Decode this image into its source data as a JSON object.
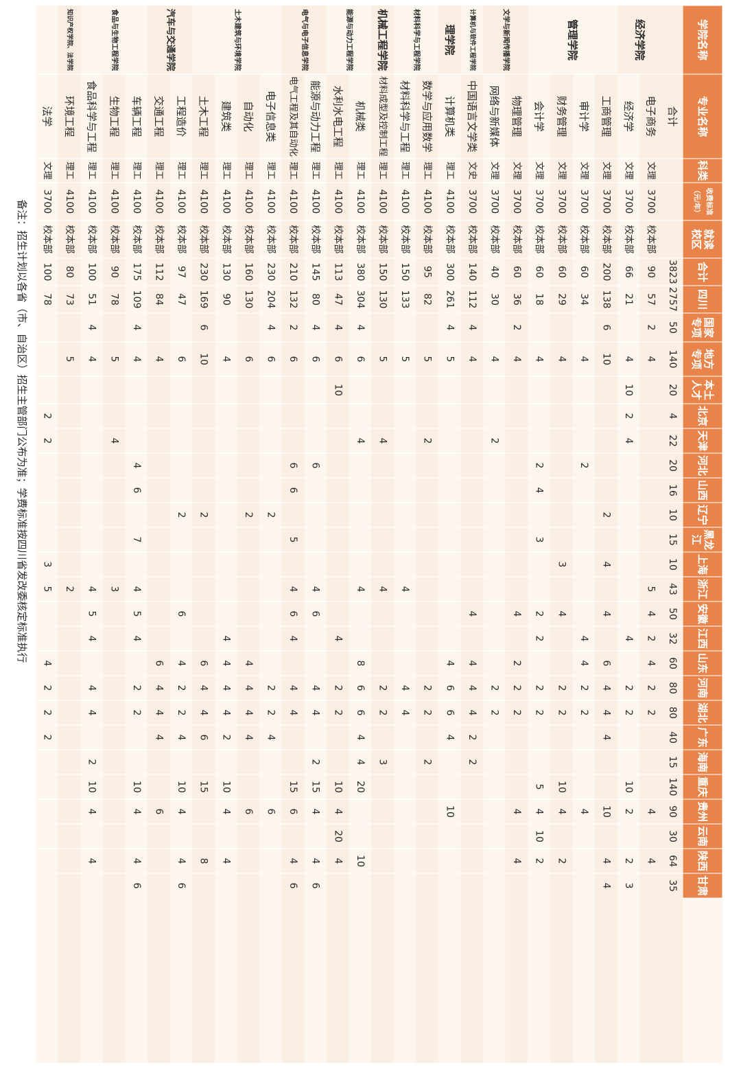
{
  "colors": {
    "header_bg": "#e8834a",
    "light_a": "#fbeee3",
    "light_b": "#fdf6ef",
    "text": "#2b2b2b",
    "header_text": "#ffffff"
  },
  "headers": [
    "学院名称",
    "专业名称",
    "科类",
    "收费标准（元/年）",
    "就读校区",
    "合计",
    "四川",
    "国家专项",
    "地方专项",
    "本土人才",
    "北京",
    "天津",
    "河北",
    "山西",
    "辽宁",
    "黑龙江",
    "上海",
    "浙江",
    "安徽",
    "江西",
    "山东",
    "河南",
    "湖北",
    "广东",
    "海南",
    "重庆",
    "贵州",
    "云南",
    "陕西",
    "甘肃"
  ],
  "total_row": {
    "label": "合计",
    "values": [
      "3823",
      "2757",
      "50",
      "140",
      "20",
      "4",
      "22",
      "20",
      "16",
      "10",
      "15",
      "10",
      "43",
      "50",
      "32",
      "60",
      "80",
      "80",
      "40",
      "15",
      "140",
      "90",
      "30",
      "64",
      "35"
    ]
  },
  "colleges": [
    {
      "name": "经济学院",
      "span": 2
    },
    {
      "name": "管理学院",
      "span": 4
    },
    {
      "name": "文学与新闻传播学院",
      "span": 2
    },
    {
      "name": "计算机与软件工程学院",
      "span": 1
    },
    {
      "name": "理学院",
      "span": 1
    },
    {
      "name": "材料科学与工程学院",
      "span": 2
    },
    {
      "name": "机械工程学院",
      "span": 1
    },
    {
      "name": "能源与动力工程学院",
      "span": 2
    },
    {
      "name": "电气与电子信息学院",
      "span": 2
    },
    {
      "name": "土木建筑与环境学院",
      "span": 4
    },
    {
      "name": "汽车与交通学院",
      "span": 2
    },
    {
      "name": "食品与生物工程学院",
      "span": 3
    },
    {
      "name": "知识产权学院、法学院",
      "span": 1
    }
  ],
  "rows": [
    {
      "major": "电子商务",
      "category": "文理",
      "fee": "3700",
      "campus": "校本部",
      "values": [
        "90",
        "57",
        "2",
        "4",
        "",
        "",
        "",
        "",
        "",
        "",
        "",
        "",
        "5",
        "4",
        "2",
        "4",
        "2",
        "2",
        "",
        "",
        "",
        "4",
        "",
        "4",
        ""
      ]
    },
    {
      "major": "经济学",
      "category": "文理",
      "fee": "3700",
      "campus": "校本部",
      "values": [
        "66",
        "21",
        "",
        "4",
        "10",
        "2",
        "4",
        "",
        "",
        "",
        "",
        "",
        "",
        "",
        "4",
        "",
        "2",
        "2",
        "",
        "",
        "10",
        "2",
        "",
        "2",
        "3"
      ]
    },
    {
      "major": "工商管理",
      "category": "文理",
      "fee": "3700",
      "campus": "校本部",
      "values": [
        "200",
        "138",
        "6",
        "10",
        "",
        "",
        "",
        "",
        "",
        "2",
        "",
        "4",
        "",
        "4",
        "",
        "6",
        "4",
        "4",
        "4",
        "",
        "",
        "10",
        "",
        "4",
        "4"
      ]
    },
    {
      "major": "审计学",
      "category": "文理",
      "fee": "3700",
      "campus": "校本部",
      "values": [
        "60",
        "34",
        "",
        "4",
        "",
        "",
        "",
        "2",
        "",
        "",
        "",
        "",
        "",
        "",
        "4",
        "4",
        "2",
        "2",
        "",
        "",
        "",
        "4",
        "",
        "",
        ""
      ]
    },
    {
      "major": "财务管理",
      "category": "文理",
      "fee": "3700",
      "campus": "校本部",
      "values": [
        "60",
        "29",
        "",
        "4",
        "",
        "",
        "",
        "",
        "",
        "",
        "",
        "3",
        "",
        "4",
        "",
        "",
        "2",
        "2",
        "",
        "",
        "10",
        "4",
        "",
        "2",
        ""
      ]
    },
    {
      "major": "会计学",
      "category": "文理",
      "fee": "3700",
      "campus": "校本部",
      "values": [
        "60",
        "18",
        "",
        "4",
        "",
        "",
        "",
        "2",
        "4",
        "",
        "3",
        "",
        "",
        "2",
        "2",
        "",
        "2",
        "2",
        "",
        "",
        "5",
        "4",
        "10",
        "2",
        ""
      ]
    },
    {
      "major": "物理管理",
      "category": "文理",
      "fee": "3700",
      "campus": "校本部",
      "values": [
        "60",
        "36",
        "2",
        "4",
        "",
        "",
        "",
        "",
        "",
        "",
        "",
        "",
        "",
        "4",
        "",
        "2",
        "2",
        "2",
        "",
        "",
        "",
        "4",
        "",
        "4",
        ""
      ]
    },
    {
      "major": "网络与新媒体",
      "category": "文理",
      "fee": "3700",
      "campus": "校本部",
      "values": [
        "40",
        "30",
        "",
        "4",
        "",
        "",
        "2",
        "",
        "",
        "",
        "",
        "",
        "",
        "",
        "",
        "",
        "2",
        "2",
        "",
        "",
        "",
        "",
        "",
        "",
        ""
      ]
    },
    {
      "major": "中国语言文学类",
      "category": "文史",
      "fee": "3700",
      "campus": "校本部",
      "values": [
        "140",
        "112",
        "4",
        "4",
        "",
        "",
        "",
        "",
        "",
        "",
        "",
        "",
        "",
        "4",
        "",
        "4",
        "4",
        "4",
        "2",
        "2",
        "",
        "",
        "",
        "",
        ""
      ]
    },
    {
      "major": "计算机类",
      "category": "理工",
      "fee": "4100",
      "campus": "校本部",
      "values": [
        "300",
        "261",
        "4",
        "5",
        "",
        "",
        "",
        "",
        "",
        "",
        "",
        "",
        "",
        "",
        "",
        "4",
        "6",
        "6",
        "4",
        "",
        "",
        "10",
        "",
        "",
        ""
      ]
    },
    {
      "major": "数学与应用数学",
      "category": "理工",
      "fee": "4100",
      "campus": "校本部",
      "values": [
        "95",
        "82",
        "",
        "5",
        "",
        "",
        "2",
        "",
        "",
        "",
        "",
        "",
        "",
        "",
        "",
        "",
        "2",
        "2",
        "",
        "2",
        "",
        "",
        "",
        "",
        ""
      ]
    },
    {
      "major": "材料科学与工程",
      "category": "理工",
      "fee": "4100",
      "campus": "校本部",
      "values": [
        "150",
        "133",
        "",
        "5",
        "",
        "",
        "",
        "",
        "",
        "",
        "",
        "",
        "4",
        "",
        "",
        "",
        "4",
        "4",
        "",
        "",
        "",
        "",
        "",
        "",
        ""
      ]
    },
    {
      "major": "材料成型及控制工程",
      "category": "理工",
      "fee": "4100",
      "campus": "校本部",
      "values": [
        "150",
        "130",
        "",
        "5",
        "",
        "",
        "4",
        "",
        "",
        "",
        "",
        "",
        "4",
        "",
        "",
        "",
        "2",
        "2",
        "",
        "3",
        "",
        "",
        "",
        "",
        ""
      ]
    },
    {
      "major": "机械类",
      "category": "理工",
      "fee": "4100",
      "campus": "校本部",
      "values": [
        "380",
        "304",
        "4",
        "6",
        "",
        "",
        "4",
        "",
        "",
        "",
        "",
        "",
        "4",
        "",
        "",
        "8",
        "6",
        "6",
        "4",
        "4",
        "20",
        "",
        "",
        "10",
        ""
      ]
    },
    {
      "major": "水利水电工程",
      "category": "理工",
      "fee": "4100",
      "campus": "校本部",
      "values": [
        "113",
        "47",
        "4",
        "6",
        "10",
        "",
        "",
        "",
        "",
        "",
        "",
        "",
        "",
        "",
        "4",
        "",
        "2",
        "2",
        "",
        "",
        "10",
        "4",
        "20",
        "4",
        ""
      ]
    },
    {
      "major": "能源与动力工程",
      "category": "理工",
      "fee": "4100",
      "campus": "校本部",
      "values": [
        "145",
        "80",
        "4",
        "6",
        "",
        "",
        "",
        "6",
        "",
        "",
        "",
        "",
        "4",
        "6",
        "",
        "",
        "4",
        "4",
        "",
        "2",
        "15",
        "4",
        "",
        "4",
        "6"
      ]
    },
    {
      "major": "电气工程及其自动化",
      "category": "理工",
      "fee": "4100",
      "campus": "校本部",
      "values": [
        "210",
        "132",
        "2",
        "6",
        "",
        "",
        "",
        "6",
        "6",
        "",
        "5",
        "",
        "4",
        "6",
        "4",
        "",
        "4",
        "4",
        "",
        "",
        "15",
        "6",
        "",
        "4",
        "6"
      ]
    },
    {
      "major": "电子信息类",
      "category": "理工",
      "fee": "4100",
      "campus": "校本部",
      "values": [
        "230",
        "204",
        "4",
        "6",
        "",
        "",
        "",
        "",
        "",
        "2",
        "",
        "",
        "",
        "",
        "",
        "",
        "2",
        "2",
        "4",
        "",
        "",
        "6",
        "",
        "",
        ""
      ]
    },
    {
      "major": "自动化",
      "category": "理工",
      "fee": "4100",
      "campus": "校本部",
      "values": [
        "160",
        "130",
        "",
        "6",
        "",
        "",
        "",
        "",
        "",
        "2",
        "",
        "",
        "",
        "",
        "",
        "4",
        "4",
        "4",
        "4",
        "",
        "",
        "6",
        "",
        "",
        ""
      ]
    },
    {
      "major": "建筑类",
      "category": "理工",
      "fee": "4100",
      "campus": "校本部",
      "values": [
        "130",
        "90",
        "",
        "4",
        "",
        "",
        "",
        "",
        "",
        "",
        "",
        "",
        "",
        "",
        "4",
        "4",
        "4",
        "4",
        "2",
        "",
        "10",
        "4",
        "",
        "4",
        ""
      ]
    },
    {
      "major": "土木工程",
      "category": "理工",
      "fee": "4100",
      "campus": "校本部",
      "values": [
        "230",
        "169",
        "6",
        "10",
        "",
        "",
        "",
        "",
        "",
        "2",
        "",
        "",
        "",
        "",
        "",
        "6",
        "4",
        "4",
        "6",
        "",
        "15",
        "",
        "",
        "8",
        ""
      ]
    },
    {
      "major": "工程造价",
      "category": "理工",
      "fee": "4100",
      "campus": "校本部",
      "values": [
        "97",
        "47",
        "",
        "6",
        "",
        "",
        "",
        "",
        "",
        "2",
        "",
        "",
        "",
        "6",
        "",
        "4",
        "2",
        "2",
        "4",
        "",
        "10",
        "4",
        "",
        "4",
        "6"
      ]
    },
    {
      "major": "交通工程",
      "category": "理工",
      "fee": "4100",
      "campus": "校本部",
      "values": [
        "112",
        "84",
        "",
        "4",
        "",
        "",
        "",
        "",
        "",
        "",
        "",
        "",
        "",
        "",
        "",
        "6",
        "4",
        "4",
        "4",
        "",
        "",
        "6",
        "",
        "",
        ""
      ]
    },
    {
      "major": "车辆工程",
      "category": "理工",
      "fee": "4100",
      "campus": "校本部",
      "values": [
        "175",
        "109",
        "4",
        "4",
        "",
        "",
        "",
        "4",
        "6",
        "",
        "7",
        "",
        "4",
        "5",
        "4",
        "",
        "2",
        "2",
        "",
        "",
        "10",
        "4",
        "",
        "4",
        "6"
      ]
    },
    {
      "major": "生物工程",
      "category": "理工",
      "fee": "4100",
      "campus": "校本部",
      "values": [
        "90",
        "78",
        "",
        "5",
        "",
        "",
        "4",
        "",
        "",
        "",
        "",
        "",
        "3",
        "",
        "",
        "",
        "",
        "",
        "",
        "",
        "",
        "",
        "",
        "",
        ""
      ]
    },
    {
      "major": "食品科学与工程",
      "category": "理工",
      "fee": "4100",
      "campus": "校本部",
      "values": [
        "100",
        "51",
        "4",
        "4",
        "",
        "",
        "",
        "",
        "",
        "",
        "",
        "",
        "4",
        "5",
        "4",
        "",
        "4",
        "4",
        "",
        "2",
        "10",
        "4",
        "",
        "4",
        ""
      ]
    },
    {
      "major": "环境工程",
      "category": "理工",
      "fee": "4100",
      "campus": "校本部",
      "values": [
        "80",
        "73",
        "",
        "5",
        "",
        "",
        "",
        "",
        "",
        "",
        "",
        "",
        "2",
        "",
        "",
        "",
        "",
        "",
        "",
        "",
        "",
        "",
        "",
        "",
        ""
      ]
    },
    {
      "major": "法学",
      "category": "文理",
      "fee": "3700",
      "campus": "校本部",
      "values": [
        "100",
        "78",
        "",
        "",
        "",
        "2",
        "2",
        "",
        "",
        "",
        "",
        "3",
        "5",
        "",
        "",
        "4",
        "2",
        "2",
        "2",
        "",
        "",
        "",
        "",
        "",
        ""
      ]
    }
  ],
  "note": "备注：招生计划以各省（市、自治区）招生主管部门公布为准；学费标准按四川省发改委核定标准执行"
}
